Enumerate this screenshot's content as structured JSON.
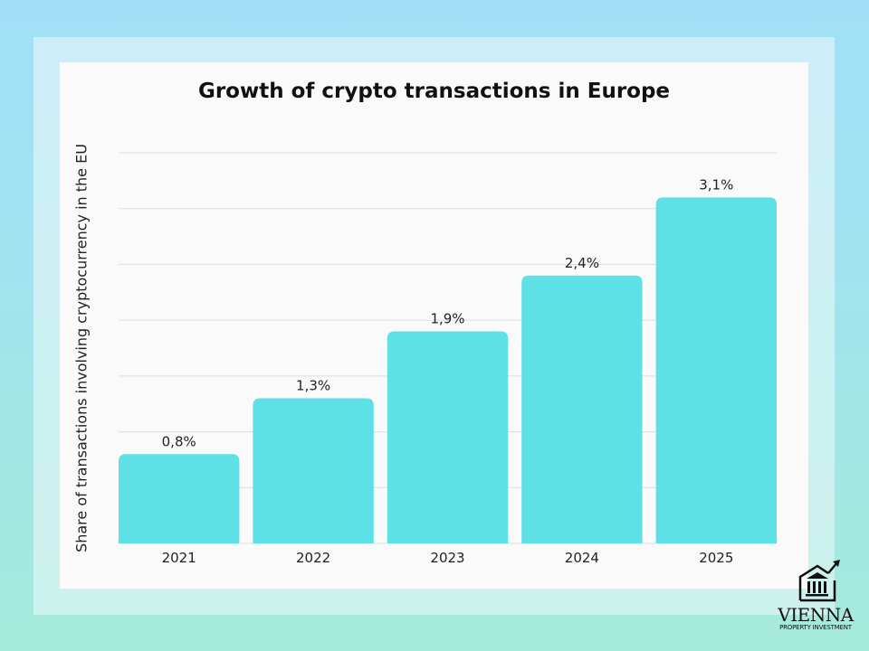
{
  "chart_data": {
    "type": "bar",
    "title": "Growth of crypto transactions in Europe",
    "xlabel": "",
    "ylabel": "Share of transactions involving cryptocurrency in the EU",
    "categories": [
      "2021",
      "2022",
      "2023",
      "2024",
      "2025"
    ],
    "values": [
      0.8,
      1.3,
      1.9,
      2.4,
      3.1
    ],
    "data_labels": [
      "0,8%",
      "1,3%",
      "1,9%",
      "2,4%",
      "3,1%"
    ],
    "ylim": [
      0,
      3.5
    ],
    "grid_step": 0.5,
    "grid": true,
    "bar_color": "#5ee1e6",
    "grid_color": "#dddddd"
  },
  "logo": {
    "name": "VIENNA",
    "tagline": "PROPERTY INVESTMENT"
  }
}
